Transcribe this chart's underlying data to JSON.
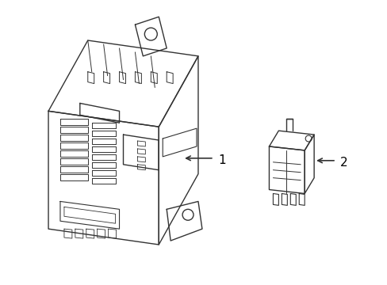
{
  "background_color": "#ffffff",
  "line_color": "#333333",
  "line_width": 1.0,
  "arrow_color": "#333333",
  "text_color": "#000000",
  "label1": "1",
  "label2": "2",
  "title": "",
  "figsize": [
    4.89,
    3.6
  ],
  "dpi": 100
}
